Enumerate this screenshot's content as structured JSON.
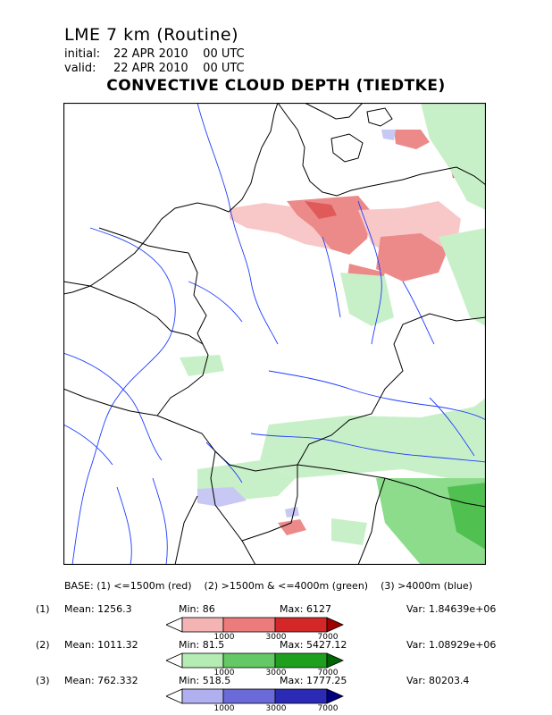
{
  "header": {
    "model": "LME 7 km (Routine)",
    "initial_label": "initial:",
    "initial_value": "22 APR 2010    00 UTC",
    "valid_label": "valid:",
    "valid_value": "22 APR 2010    00 UTC",
    "title": "CONVECTIVE CLOUD DEPTH (TIEDTKE)"
  },
  "legend": {
    "base_text": "BASE: (1) <=1500m (red)    (2) >1500m & <=4000m (green)    (3) >4000m (blue)",
    "rows": [
      {
        "index": "(1)",
        "mean": "Mean: 1256.3",
        "min": "Min: 86",
        "max": "Max: 6127",
        "var": "Var: 1.84639e+06",
        "colors": [
          "#ffffff",
          "#f4b4b4",
          "#ec7c7c",
          "#d42828",
          "#a00000"
        ],
        "ticks": [
          "1000",
          "3000",
          "7000"
        ]
      },
      {
        "index": "(2)",
        "mean": "Mean: 1011.32",
        "min": "Min: 81.5",
        "max": "Max: 5427.12",
        "var": "Var: 1.08929e+06",
        "colors": [
          "#ffffff",
          "#b4ecb4",
          "#64c864",
          "#1ea01e",
          "#006400"
        ],
        "ticks": [
          "1000",
          "3000",
          "7000"
        ]
      },
      {
        "index": "(3)",
        "mean": "Mean: 762.332",
        "min": "Min: 518.5",
        "max": "Max: 1777.25",
        "var": "Var: 80203.4",
        "colors": [
          "#ffffff",
          "#b0b0f0",
          "#6a6ad8",
          "#2a2ab4",
          "#000080"
        ],
        "ticks": [
          "1000",
          "3000",
          "7000"
        ]
      }
    ]
  },
  "map_colors": {
    "border": "#000000",
    "coast": "#000000",
    "river": "#1e3cff",
    "red_light": "#f8c8c8",
    "red_mid": "#ec8a8a",
    "red_dark": "#e05a5a",
    "green_light": "#c8f0c8",
    "green_mid": "#8cdc8c",
    "green_dark": "#50c050",
    "blue_light": "#c8c8f4"
  }
}
